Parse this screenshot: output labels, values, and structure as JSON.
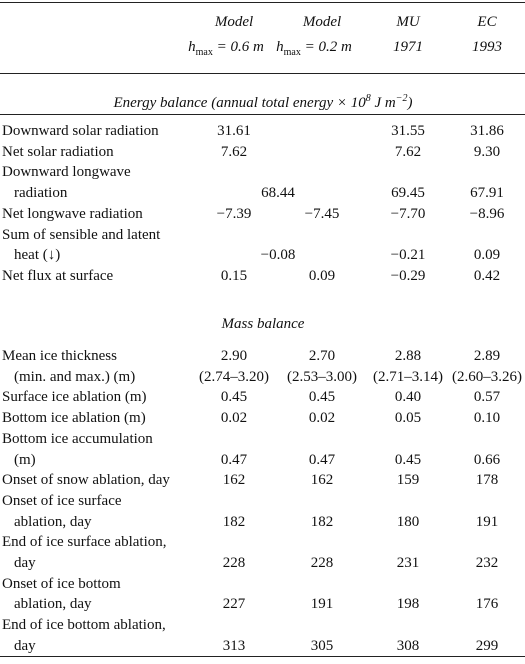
{
  "table": {
    "header": [
      {
        "line1": "Model",
        "symbol": "h",
        "subscript": "max",
        "line2": "= 0.6 m"
      },
      {
        "line1": "Model",
        "symbol": "h",
        "subscript": "max",
        "line2": "= 0.2 m"
      },
      {
        "line1": "MU",
        "line2": "1971"
      },
      {
        "line1": "EC",
        "line2": "1993"
      }
    ],
    "sections": [
      {
        "title": [
          {
            "text": "Energy balance (annual total energy × 10"
          },
          {
            "sup": "8"
          },
          {
            "text": " J m"
          },
          {
            "sup": "−2"
          },
          {
            "text": ")"
          }
        ],
        "rows": [
          {
            "lines": [
              {
                "label": "Downward solar radiation",
                "values": [
                  "31.61",
                  null,
                  "31.55",
                  "31.86"
                ]
              }
            ]
          },
          {
            "lines": [
              {
                "label": "Net solar radiation",
                "values": [
                  "7.62",
                  null,
                  "7.62",
                  "9.30"
                ]
              }
            ]
          },
          {
            "lines": [
              {
                "label": "Downward longwave"
              },
              {
                "label": "radiation",
                "shared_model_value": true,
                "values": [
                  "68.44",
                  "69.45",
                  "67.91"
                ]
              }
            ]
          },
          {
            "lines": [
              {
                "label": "Net longwave radiation",
                "values": [
                  "−7.39",
                  "−7.45",
                  "−7.70",
                  "−8.96"
                ]
              }
            ]
          },
          {
            "lines": [
              {
                "label": "Sum of sensible and latent"
              },
              {
                "label": "heat (↓)",
                "shared_model_value": true,
                "values": [
                  "−0.08",
                  "−0.21",
                  "0.09"
                ]
              }
            ]
          },
          {
            "lines": [
              {
                "label": "Net flux at surface",
                "values": [
                  "0.15",
                  "0.09",
                  "−0.29",
                  "0.42"
                ]
              }
            ]
          }
        ]
      },
      {
        "title": [
          {
            "text": "Mass balance"
          }
        ],
        "rows": [
          {
            "lines": [
              {
                "label": "Mean ice thickness",
                "values": [
                  "2.90",
                  "2.70",
                  "2.88",
                  "2.89"
                ]
              },
              {
                "label": "(min. and max.) (m)",
                "values": [
                  "(2.74–3.20)",
                  "(2.53–3.00)",
                  "(2.71–3.14)",
                  "(2.60–3.26)"
                ]
              }
            ]
          },
          {
            "lines": [
              {
                "label": "Surface ice ablation (m)",
                "values": [
                  "0.45",
                  "0.45",
                  "0.40",
                  "0.57"
                ]
              }
            ]
          },
          {
            "lines": [
              {
                "label": "Bottom ice ablation (m)",
                "values": [
                  "0.02",
                  "0.02",
                  "0.05",
                  "0.10"
                ]
              }
            ]
          },
          {
            "lines": [
              {
                "label": "Bottom ice accumulation"
              },
              {
                "label": "(m)",
                "values": [
                  "0.47",
                  "0.47",
                  "0.45",
                  "0.66"
                ]
              }
            ]
          },
          {
            "lines": [
              {
                "label": "Onset of snow ablation, day",
                "values": [
                  "162",
                  "162",
                  "159",
                  "178"
                ]
              }
            ]
          },
          {
            "lines": [
              {
                "label": "Onset of ice surface"
              },
              {
                "label": "ablation, day",
                "values": [
                  "182",
                  "182",
                  "180",
                  "191"
                ]
              }
            ]
          },
          {
            "lines": [
              {
                "label": "End of ice surface ablation,"
              },
              {
                "label": "day",
                "values": [
                  "228",
                  "228",
                  "231",
                  "232"
                ]
              }
            ]
          },
          {
            "lines": [
              {
                "label": "Onset of ice bottom"
              },
              {
                "label": "ablation, day",
                "values": [
                  "227",
                  "191",
                  "198",
                  "176"
                ]
              }
            ]
          },
          {
            "lines": [
              {
                "label": "End of ice bottom ablation,"
              },
              {
                "label": "day",
                "values": [
                  "313",
                  "305",
                  "308",
                  "299"
                ]
              }
            ]
          }
        ]
      }
    ]
  }
}
